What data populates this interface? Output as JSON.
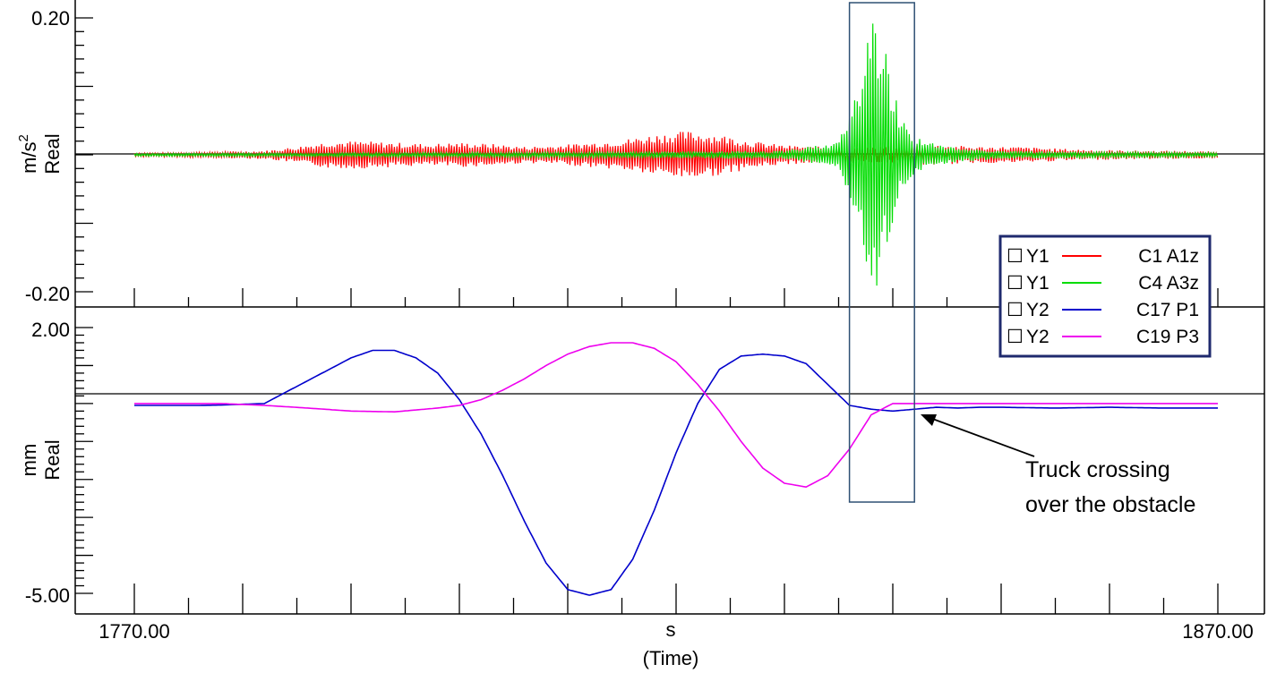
{
  "chart_data": [
    {
      "type": "line",
      "panel": "top",
      "ylabel_unit": "m/s",
      "ylabel_unit_sup": "2",
      "ylabel_mode": "Real",
      "ylim": [
        -0.2,
        0.2
      ],
      "y_tick_labels": [
        "0.20",
        "-0.20"
      ],
      "series": [
        {
          "name": "C1 A1z",
          "axis": "Y1",
          "color": "#ff0000",
          "x": [
            1770,
            1773,
            1776,
            1779,
            1782,
            1785,
            1788,
            1791,
            1794,
            1797,
            1800,
            1803,
            1806,
            1809,
            1812,
            1815,
            1818,
            1821,
            1824,
            1827,
            1830,
            1833,
            1836,
            1839,
            1842,
            1845,
            1848,
            1851,
            1854,
            1857,
            1860,
            1863,
            1866,
            1869,
            1870
          ],
          "envelope": [
            0.003,
            0.003,
            0.004,
            0.005,
            0.006,
            0.012,
            0.02,
            0.02,
            0.018,
            0.016,
            0.018,
            0.016,
            0.012,
            0.014,
            0.018,
            0.022,
            0.03,
            0.035,
            0.03,
            0.02,
            0.014,
            0.012,
            0.012,
            0.012,
            0.016,
            0.014,
            0.012,
            0.012,
            0.01,
            0.008,
            0.007,
            0.006,
            0.006,
            0.005,
            0.005
          ]
        },
        {
          "name": "C4 A3z",
          "axis": "Y1",
          "color": "#00dd00",
          "x": [
            1770,
            1790,
            1810,
            1830,
            1835,
            1836,
            1837,
            1838,
            1839,
            1840,
            1841,
            1842,
            1843,
            1845,
            1850,
            1860,
            1870
          ],
          "envelope": [
            0.002,
            0.003,
            0.004,
            0.006,
            0.02,
            0.06,
            0.12,
            0.21,
            0.18,
            0.1,
            0.05,
            0.03,
            0.02,
            0.012,
            0.006,
            0.004,
            0.003
          ]
        }
      ]
    },
    {
      "type": "line",
      "panel": "bottom",
      "ylabel_unit": "mm",
      "ylabel_mode": "Real",
      "ylim": [
        -5.0,
        2.0
      ],
      "y_tick_labels": [
        "2.00",
        "-5.00"
      ],
      "x_tick_labels": [
        "1770.00",
        "1870.00"
      ],
      "xlabel": "s",
      "xlabel_sub": "(Time)",
      "series": [
        {
          "name": "C17 P1",
          "axis": "Y2",
          "color": "#0000cc",
          "x": [
            1770,
            1772,
            1774,
            1776,
            1778,
            1780,
            1782,
            1784,
            1786,
            1788,
            1790,
            1792,
            1794,
            1796,
            1798,
            1800,
            1802,
            1804,
            1806,
            1808,
            1810,
            1812,
            1814,
            1816,
            1818,
            1820,
            1822,
            1824,
            1826,
            1828,
            1830,
            1832,
            1834,
            1836,
            1838,
            1840,
            1842,
            1844,
            1846,
            1848,
            1850,
            1855,
            1860,
            1865,
            1870
          ],
          "y": [
            -0.05,
            -0.05,
            -0.05,
            -0.05,
            -0.04,
            -0.02,
            0.0,
            0.3,
            0.6,
            0.9,
            1.2,
            1.4,
            1.4,
            1.2,
            0.8,
            0.1,
            -0.8,
            -1.9,
            -3.1,
            -4.2,
            -4.9,
            -5.05,
            -4.9,
            -4.1,
            -2.8,
            -1.3,
            0.0,
            0.9,
            1.25,
            1.3,
            1.25,
            1.05,
            0.5,
            -0.05,
            -0.15,
            -0.2,
            -0.15,
            -0.1,
            -0.12,
            -0.1,
            -0.1,
            -0.12,
            -0.1,
            -0.12,
            -0.12
          ]
        },
        {
          "name": "C19 P3",
          "axis": "Y2",
          "color": "#ee00ee",
          "x": [
            1770,
            1774,
            1778,
            1782,
            1786,
            1790,
            1794,
            1798,
            1800,
            1802,
            1804,
            1806,
            1808,
            1810,
            1812,
            1814,
            1816,
            1818,
            1820,
            1822,
            1824,
            1826,
            1828,
            1830,
            1832,
            1834,
            1836,
            1838,
            1840,
            1842,
            1844,
            1848,
            1852,
            1856,
            1860,
            1864,
            1870
          ],
          "y": [
            0.0,
            0.0,
            0.0,
            -0.05,
            -0.12,
            -0.2,
            -0.22,
            -0.12,
            -0.05,
            0.1,
            0.35,
            0.65,
            1.0,
            1.3,
            1.5,
            1.6,
            1.6,
            1.45,
            1.1,
            0.5,
            -0.2,
            -1.0,
            -1.7,
            -2.1,
            -2.2,
            -1.9,
            -1.2,
            -0.3,
            0.0,
            0.0,
            0.0,
            0.0,
            0.0,
            0.0,
            0.0,
            0.0,
            0.0
          ]
        }
      ]
    }
  ],
  "legend": {
    "entries": [
      {
        "box": "☐",
        "axis": "Y1",
        "name": "C1 A1z",
        "color": "#ff0000"
      },
      {
        "box": "☐",
        "axis": "Y1",
        "name": "C4 A3z",
        "color": "#00dd00"
      },
      {
        "box": "☐",
        "axis": "Y2",
        "name": "C17 P1",
        "color": "#0000cc"
      },
      {
        "box": "☐",
        "axis": "Y2",
        "name": "C19 P3",
        "color": "#ee00ee"
      }
    ],
    "border_color": "#1f2a6e"
  },
  "annotation": {
    "line1": "Truck crossing",
    "line2": "over the obstacle",
    "region_x": [
      1836,
      1842
    ],
    "box_color": "#2e5074"
  },
  "xlim": [
    1770,
    1870
  ]
}
